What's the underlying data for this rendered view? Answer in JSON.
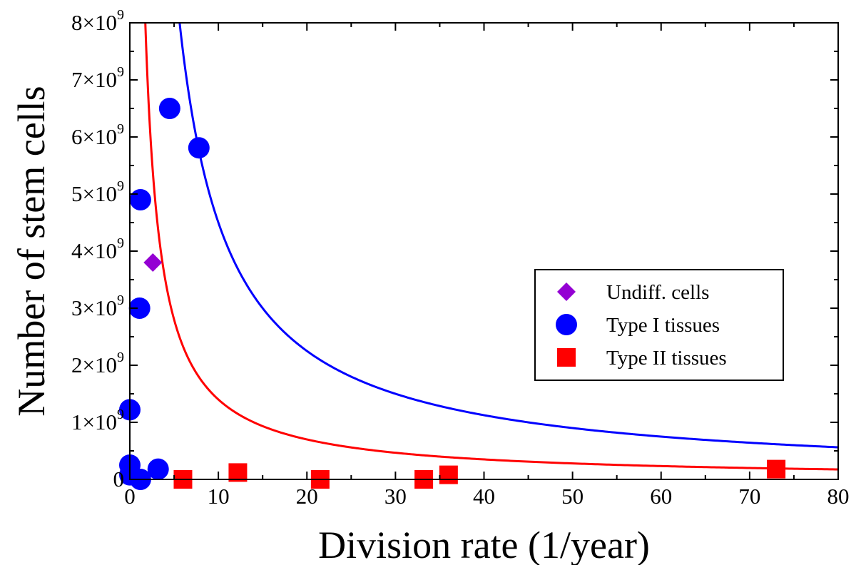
{
  "chart_data": {
    "type": "scatter",
    "xlabel": "Division rate (1/year)",
    "ylabel": "Number of stem cells",
    "xlim": [
      0,
      80
    ],
    "ylim": [
      0,
      8000000000
    ],
    "x_ticks": [
      {
        "value": 0,
        "label": "0"
      },
      {
        "value": 10,
        "label": "10"
      },
      {
        "value": 20,
        "label": "20"
      },
      {
        "value": 30,
        "label": "30"
      },
      {
        "value": 40,
        "label": "40"
      },
      {
        "value": 50,
        "label": "50"
      },
      {
        "value": 60,
        "label": "60"
      },
      {
        "value": 70,
        "label": "70"
      },
      {
        "value": 80,
        "label": "80"
      }
    ],
    "y_ticks": [
      {
        "value": 0,
        "mantissa": "0",
        "exp": ""
      },
      {
        "value": 1000000000,
        "mantissa": "1×10",
        "exp": "9"
      },
      {
        "value": 2000000000,
        "mantissa": "2×10",
        "exp": "9"
      },
      {
        "value": 3000000000,
        "mantissa": "3×10",
        "exp": "9"
      },
      {
        "value": 4000000000,
        "mantissa": "4×10",
        "exp": "9"
      },
      {
        "value": 5000000000,
        "mantissa": "5×10",
        "exp": "9"
      },
      {
        "value": 6000000000,
        "mantissa": "6×10",
        "exp": "9"
      },
      {
        "value": 7000000000,
        "mantissa": "7×10",
        "exp": "9"
      },
      {
        "value": 8000000000,
        "mantissa": "8×10",
        "exp": "9"
      }
    ],
    "grid": false,
    "legend_position": "center-right",
    "series": [
      {
        "name": "Undiff. cells",
        "marker": "diamond",
        "color": "#9400d3",
        "points": [
          {
            "x": 2.6,
            "y": 3800000000
          }
        ]
      },
      {
        "name": "Type I tissues",
        "marker": "circle",
        "color": "#0000ff",
        "points": [
          {
            "x": 0.0,
            "y": 1220000000
          },
          {
            "x": 0.0,
            "y": 250000000
          },
          {
            "x": 0.0,
            "y": 80000000
          },
          {
            "x": 1.2,
            "y": 0
          },
          {
            "x": 1.2,
            "y": 4900000000
          },
          {
            "x": 1.1,
            "y": 3000000000
          },
          {
            "x": 3.2,
            "y": 180000000
          },
          {
            "x": 4.5,
            "y": 6500000000
          },
          {
            "x": 7.8,
            "y": 5810000000
          }
        ]
      },
      {
        "name": "Type II tissues",
        "marker": "square",
        "color": "#ff0000",
        "points": [
          {
            "x": 6.0,
            "y": 0
          },
          {
            "x": 12.2,
            "y": 120000000
          },
          {
            "x": 21.5,
            "y": 0
          },
          {
            "x": 33.2,
            "y": 0
          },
          {
            "x": 36.0,
            "y": 80000000
          },
          {
            "x": 73.0,
            "y": 180000000
          }
        ]
      }
    ],
    "curves": [
      {
        "color": "#0000ff",
        "form": "y = k / x",
        "k": 45000000000
      },
      {
        "color": "#ff0000",
        "form": "y = k / x",
        "k": 14000000000
      }
    ]
  }
}
